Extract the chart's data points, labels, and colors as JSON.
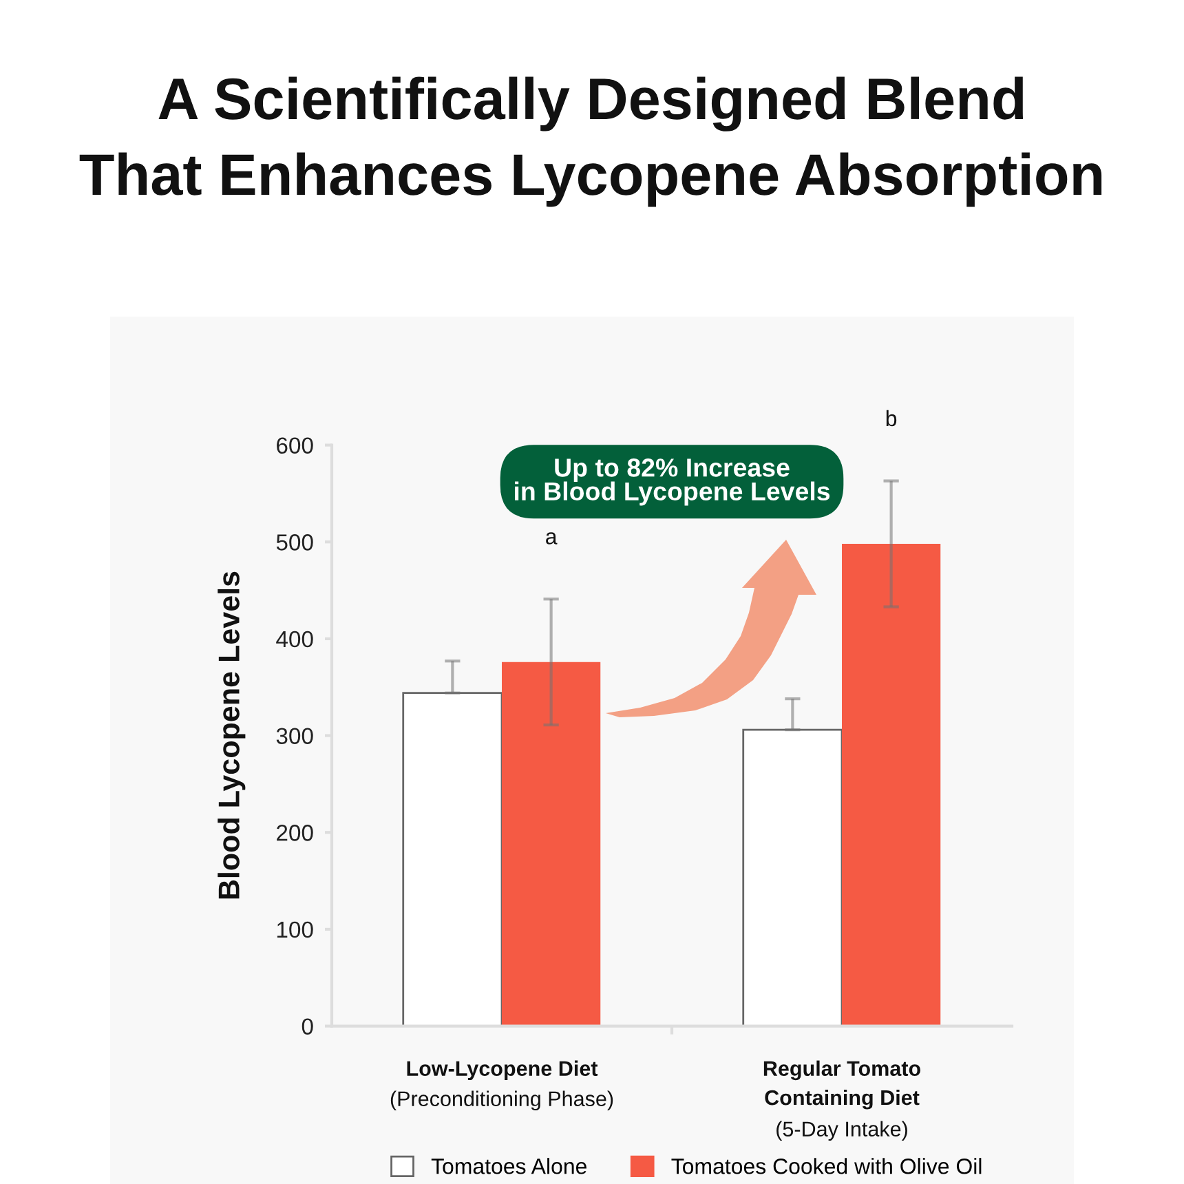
{
  "chart_data": {
    "type": "bar",
    "title": "A Scientifically Designed Blend\nThat Enhances Lycopene Absorption",
    "ylabel": "Blood Lycopene Levels",
    "categories": [
      "Low-Lycopene Diet\n(Preconditioning Phase)",
      "Regular Tomato\nContaining Diet\n(5-Day Intake)"
    ],
    "series": [
      {
        "name": "Tomatoes Alone",
        "color": "#ffffff",
        "values": [
          344,
          306
        ],
        "errors": [
          [
            344,
            377
          ],
          [
            306,
            338
          ]
        ]
      },
      {
        "name": "Tomatoes Cooked with Olive Oil",
        "color": "#f55a44",
        "values": [
          376,
          498
        ],
        "errors": [
          65,
          65
        ]
      }
    ],
    "ylim": [
      0,
      600
    ],
    "yticks": [
      0,
      100,
      200,
      300,
      400,
      500,
      600
    ],
    "legend": "bottom",
    "annotations": [
      "Up to 82% Increase\nin Blood Lycopene Levels",
      "a",
      "b"
    ]
  }
}
